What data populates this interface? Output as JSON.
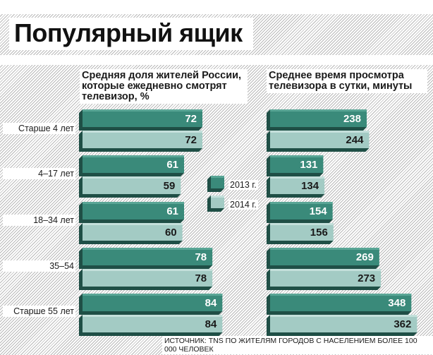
{
  "title": "Популярный ящик",
  "source": "ИСТОЧНИК: TNS ПО ЖИТЕЛЯМ ГОРОДОВ С НАСЕЛЕНИЕМ БОЛЕЕ 100 000 ЧЕЛОВЕК",
  "legend": [
    "2013 г.",
    "2014 г."
  ],
  "colors": {
    "s2013": "#3a8a7a",
    "s2013_top": "#5aa696",
    "s2014": "#a3cbc4",
    "s2014_top": "#c4e0db",
    "shadow": "#1f4f46"
  },
  "categories": [
    "Старше 4 лет",
    "4–17 лет",
    "18–34 лет",
    "35–54",
    "Старше 55 лет"
  ],
  "chart_data": [
    {
      "type": "bar",
      "title": "Средняя доля жителей России, которые ежедневно смотрят телевизор, %",
      "categories": [
        "Старше 4 лет",
        "4–17 лет",
        "18–34 лет",
        "35–54",
        "Старше 55 лет"
      ],
      "series": [
        {
          "name": "2013 г.",
          "values": [
            72,
            61,
            61,
            78,
            84
          ]
        },
        {
          "name": "2014 г.",
          "values": [
            72,
            59,
            60,
            78,
            84
          ]
        }
      ]
    },
    {
      "type": "bar",
      "title": "Среднее время просмотра телевизора в сутки, минуты",
      "categories": [
        "Старше 4 лет",
        "4–17 лет",
        "18–34 лет",
        "35–54",
        "Старше 55 лет"
      ],
      "series": [
        {
          "name": "2013 г.",
          "values": [
            238,
            131,
            154,
            269,
            348
          ]
        },
        {
          "name": "2014 г.",
          "values": [
            244,
            134,
            156,
            273,
            362
          ]
        }
      ]
    }
  ]
}
